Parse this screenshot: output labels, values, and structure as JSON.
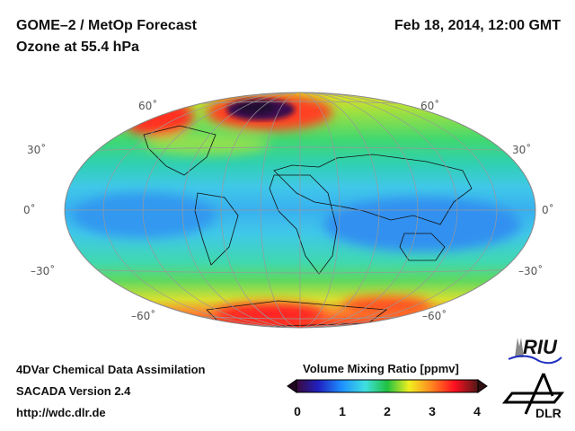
{
  "header": {
    "title": "GOME–2 / MetOp Forecast",
    "subtitle": "Ozone at 55.4 hPa",
    "datetime": "Feb 18, 2014, 12:00 GMT"
  },
  "map": {
    "lat_labels_left": [
      "60˚",
      "30˚",
      "0˚",
      "–30˚",
      "–60˚"
    ],
    "lat_labels_right": [
      "60˚",
      "30˚",
      "0˚",
      "–30˚",
      "–60˚"
    ]
  },
  "colorbar": {
    "title": "Volume Mixing Ratio [ppmv]",
    "ticks": [
      "0",
      "1",
      "2",
      "3",
      "4"
    ],
    "range": [
      0,
      4
    ],
    "colors": [
      "#3a0a3a",
      "#2020c0",
      "#1e90ff",
      "#40e0e0",
      "#20c040",
      "#f0f020",
      "#ff8020",
      "#ff1020",
      "#501818"
    ]
  },
  "footer": {
    "line1": "4DVar Chemical Data Assimilation",
    "line2": "SACADA Version 2.4",
    "line3": "http://wdc.dlr.de"
  },
  "logos": {
    "riu": "RIU",
    "dlr": "DLR"
  }
}
